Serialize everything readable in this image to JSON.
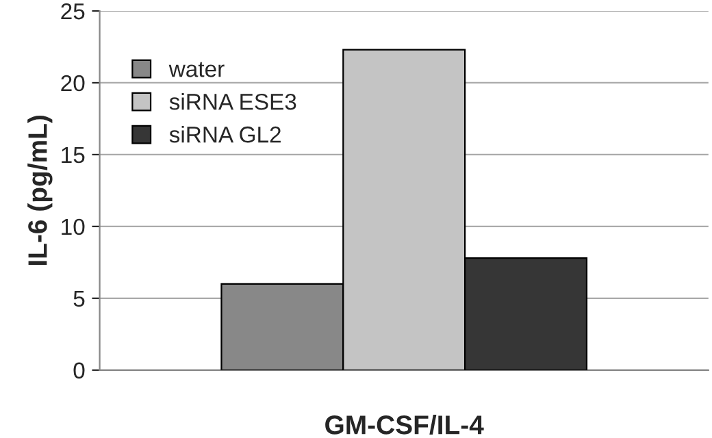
{
  "chart_data": {
    "type": "bar",
    "xlabel": "GM-CSF/IL-4",
    "ylabel": "IL-6 (pg/mL)",
    "categories": [
      null
    ],
    "series": [
      {
        "name": "water",
        "color": "#888888",
        "values": [
          6.0
        ]
      },
      {
        "name": "siRNA ESE3",
        "color": "#c4c4c4",
        "values": [
          22.3
        ]
      },
      {
        "name": "siRNA GL2",
        "color": "#363636",
        "values": [
          7.8
        ]
      }
    ],
    "ylim": [
      0,
      25
    ],
    "yticks": [
      0,
      5,
      10,
      15,
      20,
      25
    ],
    "grid": "y",
    "legend": "top left"
  }
}
